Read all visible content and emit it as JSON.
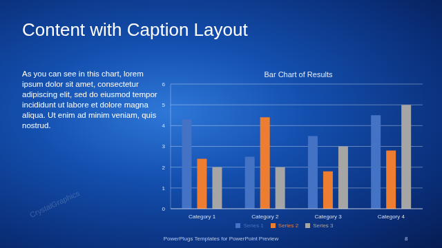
{
  "slide": {
    "title": "Content with Caption Layout",
    "caption": "As you can see in this chart, lorem ipsum dolor sit amet, consectetur adipiscing elit, sed do eiusmod tempor incididunt ut labore et dolore magna aliqua. Ut enim ad minim veniam, quis nostrud.",
    "footer": "PowerPlugs Templates for PowerPoint Preview",
    "page": 8,
    "watermark": "CrystalGraphics"
  },
  "chart_data": {
    "type": "bar",
    "title": "Bar Chart of Results",
    "categories": [
      "Category 1",
      "Category 2",
      "Category 3",
      "Category 4"
    ],
    "series": [
      {
        "name": "Series 1",
        "color": "#4472c4",
        "values": [
          4.3,
          2.5,
          3.5,
          4.5
        ]
      },
      {
        "name": "Series 2",
        "color": "#ed7d31",
        "values": [
          2.4,
          4.4,
          1.8,
          2.8
        ]
      },
      {
        "name": "Series 3",
        "color": "#a5a5a5",
        "values": [
          2.0,
          2.0,
          3.0,
          5.0
        ]
      }
    ],
    "ylim": [
      0,
      6
    ],
    "yticks": [
      0,
      1,
      2,
      3,
      4,
      5,
      6
    ],
    "grid": true,
    "legend": "bottom"
  }
}
